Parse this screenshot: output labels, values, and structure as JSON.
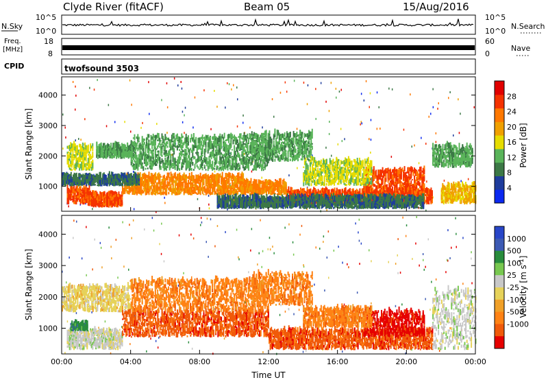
{
  "header": {
    "station": "Clyde River (fitACF)",
    "beam": "Beam 05",
    "date": "15/Aug/2016"
  },
  "top_panels": {
    "nsky_label": "N.Sky",
    "nsky_tick_top": "10^5",
    "nsky_tick_bottom": "10^0",
    "nsearch_label": "N.Search",
    "nsearch_tick_top": "10^5",
    "nsearch_tick_bottom": "10^0",
    "freq_label_1": "Freq.",
    "freq_label_2": "[MHz]",
    "freq_tick_top": "18",
    "freq_tick_bottom": "8",
    "nave_label": "Nave",
    "nave_tick_top": "60",
    "nave_tick_bottom": "0",
    "cpid_label": "CPID",
    "cpid_value": "twofsound 3503"
  },
  "colors": {
    "power": [
      "#0a28f0",
      "#1e3c9c",
      "#3c7846",
      "#5ab45a",
      "#e6dc00",
      "#f0a000",
      "#ff7800",
      "#f53200",
      "#e10000"
    ],
    "velocity": [
      "#2846c8",
      "#3c5ab4",
      "#288c3c",
      "#78c850",
      "#c8c8c8",
      "#e6d25a",
      "#f0a028",
      "#ff8214",
      "#f05a0a",
      "#e60000"
    ]
  },
  "chart_data": [
    {
      "type": "heatmap",
      "name": "power",
      "xlabel": "",
      "ylabel": "Slant Range [km]",
      "xlim": [
        "00:00",
        "24:00"
      ],
      "ylim": [
        180,
        4600
      ],
      "yticks": [
        1000,
        2000,
        3000,
        4000
      ],
      "colorbar_label": "Power [dB]",
      "colorbar_ticks": [
        "4",
        "8",
        "12",
        "16",
        "20",
        "24",
        "28"
      ],
      "colorbar_range": [
        0,
        32
      ],
      "bands": [
        {
          "t0": 0.3,
          "t1": 1.6,
          "r0": 400,
          "r1": 900,
          "level": 26
        },
        {
          "t0": 1.5,
          "t1": 3.5,
          "r0": 300,
          "r1": 700,
          "level": 28
        },
        {
          "t0": 3.5,
          "t1": 10.5,
          "r0": 700,
          "r1": 1300,
          "level": 24
        },
        {
          "t0": 10.5,
          "t1": 13.0,
          "r0": 700,
          "r1": 1100,
          "level": 22
        },
        {
          "t0": 13.0,
          "t1": 21.5,
          "r0": 400,
          "r1": 800,
          "level": 26
        },
        {
          "t0": 17.5,
          "t1": 21.0,
          "r0": 700,
          "r1": 1500,
          "level": 28
        },
        {
          "t0": 0.0,
          "t1": 4.5,
          "r0": 1000,
          "r1": 1300,
          "level": 8
        },
        {
          "t0": 0.3,
          "t1": 1.8,
          "r0": 1500,
          "r1": 2300,
          "level": 16
        },
        {
          "t0": 2.0,
          "t1": 4.0,
          "r0": 1900,
          "r1": 2300,
          "level": 12
        },
        {
          "t0": 4.0,
          "t1": 12.0,
          "r0": 1500,
          "r1": 2600,
          "level": 12
        },
        {
          "t0": 11.0,
          "t1": 14.5,
          "r0": 1800,
          "r1": 2700,
          "level": 10
        },
        {
          "t0": 9.0,
          "t1": 21.0,
          "r0": 250,
          "r1": 600,
          "level": 8
        },
        {
          "t0": 14.0,
          "t1": 18.0,
          "r0": 1000,
          "r1": 1800,
          "level": 14
        },
        {
          "t0": 21.5,
          "t1": 23.8,
          "r0": 1600,
          "r1": 2300,
          "level": 10
        },
        {
          "t0": 22.0,
          "t1": 24.0,
          "r0": 400,
          "r1": 1000,
          "level": 18
        }
      ]
    },
    {
      "type": "heatmap",
      "name": "velocity",
      "xlabel": "Time UT",
      "ylabel": "Slant Range [km]",
      "xlim": [
        "00:00",
        "24:00"
      ],
      "xticks": [
        "00:00",
        "04:00",
        "08:00",
        "12:00",
        "16:00",
        "20:00",
        "00:00"
      ],
      "ylim": [
        180,
        4600
      ],
      "yticks": [
        1000,
        2000,
        3000,
        4000
      ],
      "colorbar_label": "Velocity [m s^-1]",
      "colorbar_ticks": [
        "1000",
        "500",
        "100",
        "25",
        "-25",
        "-100",
        "-500",
        "-1000"
      ],
      "bands": [
        {
          "t0": 0.0,
          "t1": 4.0,
          "r0": 1500,
          "r1": 2300,
          "level": 5
        },
        {
          "t0": 0.3,
          "t1": 3.5,
          "r0": 300,
          "r1": 900,
          "level": 4
        },
        {
          "t0": 0.5,
          "t1": 1.5,
          "r0": 900,
          "r1": 1100,
          "level": 2
        },
        {
          "t0": 3.5,
          "t1": 12.0,
          "r0": 700,
          "r1": 1500,
          "level": 8
        },
        {
          "t0": 4.0,
          "t1": 12.0,
          "r0": 1500,
          "r1": 2500,
          "level": 7
        },
        {
          "t0": 11.0,
          "t1": 14.5,
          "r0": 1700,
          "r1": 2700,
          "level": 7
        },
        {
          "t0": 12.0,
          "t1": 21.5,
          "r0": 300,
          "r1": 900,
          "level": 8
        },
        {
          "t0": 17.5,
          "t1": 21.0,
          "r0": 700,
          "r1": 1500,
          "level": 9
        },
        {
          "t0": 14.0,
          "t1": 18.0,
          "r0": 1000,
          "r1": 1600,
          "level": 7
        },
        {
          "t0": 21.5,
          "t1": 24.0,
          "r0": 300,
          "r1": 2200,
          "level": 4
        }
      ]
    }
  ]
}
